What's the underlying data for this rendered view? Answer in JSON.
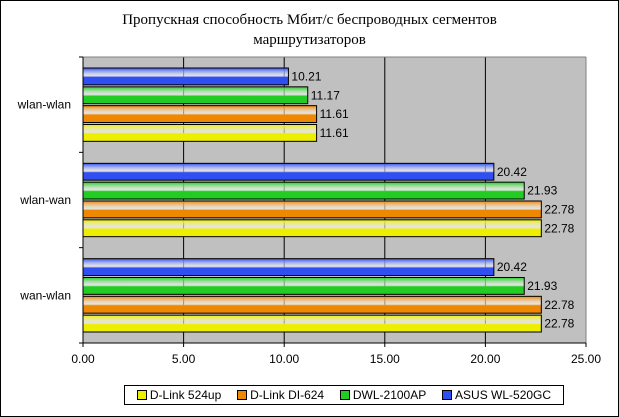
{
  "chart_data": {
    "type": "bar",
    "orientation": "horizontal",
    "title": "Пропускная способность Мбит/с беспроводных сегментов маршрутизаторов",
    "title_lines": [
      "Пропускная способность Мбит/с беспроводных сегментов",
      "маршрутизаторов"
    ],
    "categories": [
      "wlan-wlan",
      "wlan-wan",
      "wan-wlan"
    ],
    "series": [
      {
        "name": "ASUS WL-520GC",
        "color": "#2f4ff0",
        "values": [
          10.21,
          20.42,
          20.42
        ]
      },
      {
        "name": "DWL-2100AP",
        "color": "#22cc22",
        "values": [
          11.17,
          21.93,
          21.93
        ]
      },
      {
        "name": "D-Link DI-624",
        "color": "#ee8800",
        "values": [
          11.61,
          22.78,
          22.78
        ]
      },
      {
        "name": "D-Link 524up",
        "color": "#eeee00",
        "values": [
          11.61,
          22.78,
          22.78
        ]
      }
    ],
    "legend_order": [
      "D-Link 524up",
      "D-Link DI-624",
      "DWL-2100AP",
      "ASUS WL-520GC"
    ],
    "xlim": [
      0,
      25
    ],
    "xticks": [
      "0.00",
      "5.00",
      "10.00",
      "15.00",
      "20.00",
      "25.00"
    ],
    "grid": true,
    "legend_position": "bottom"
  }
}
